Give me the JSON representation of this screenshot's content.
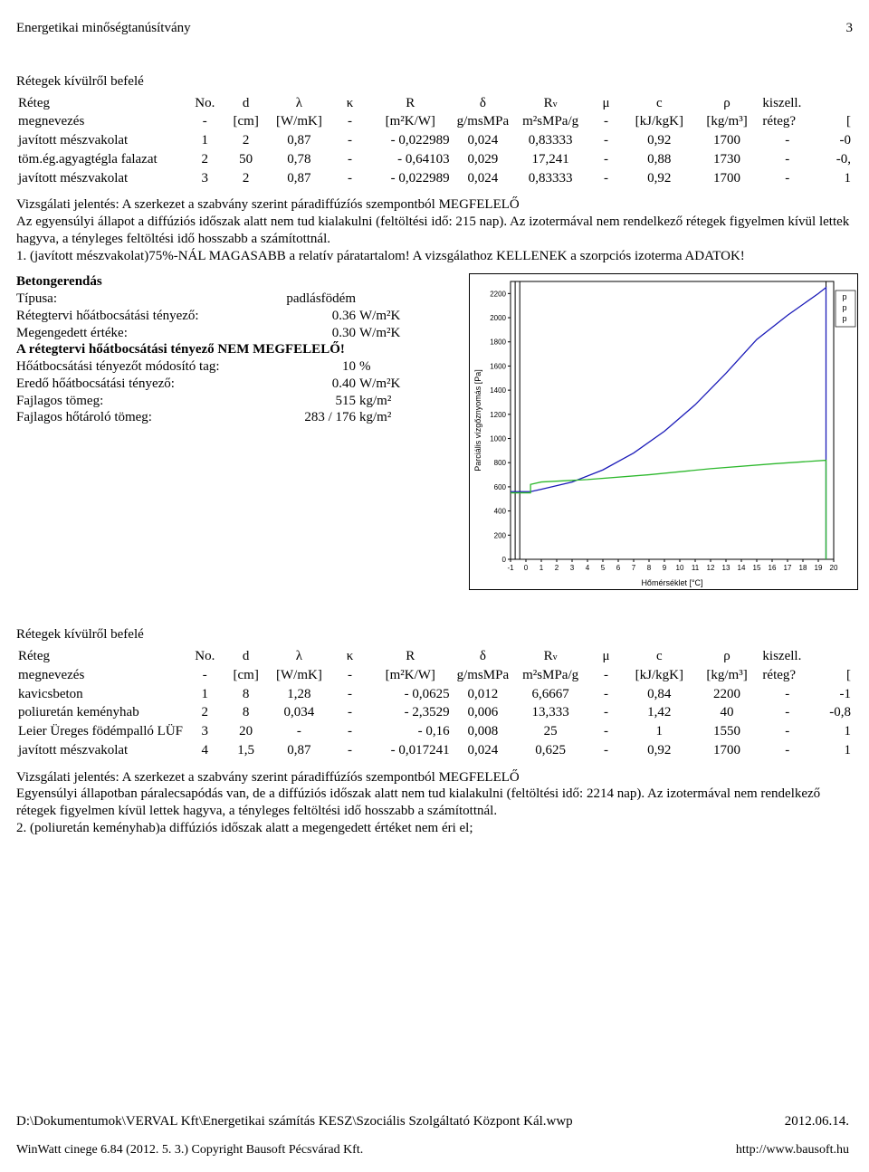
{
  "header": {
    "title": "Energetikai minőségtanúsítvány",
    "page": "3"
  },
  "section1": {
    "caption": "Rétegek kívülről befelé",
    "headers": {
      "l0": "Réteg",
      "no": "No.",
      "d": "d",
      "lambda": "λ",
      "kappa": "κ",
      "R": "R",
      "delta": "δ",
      "Rv": "R",
      "mu": "μ",
      "c": "c",
      "rho": "ρ",
      "kiszell": "kiszell.",
      "l1": "megnevezés",
      "dash": "-",
      "u_d": "[cm]",
      "u_l": "[W/mK]",
      "u_R": "[m²K/W]",
      "u_dl": "g/msMPa",
      "u_Rv": "m²sMPa/g",
      "u_c": "[kJ/kgK]",
      "u_rho": "[kg/m³]",
      "u_k": "réteg?",
      "br": "["
    },
    "rows": [
      {
        "name": "javított mészvakolat",
        "no": "1",
        "d": "2",
        "l": "0,87",
        "k": "-",
        "R": "0,022989",
        "dl": "0,024",
        "Rv": "0,83333",
        "mu": "-",
        "c": "0,92",
        "rho": "1700",
        "ks": "-",
        "end": "-0"
      },
      {
        "name": "töm.ég.agyagtégla falazat",
        "no": "2",
        "d": "50",
        "l": "0,78",
        "k": "-",
        "R": "0,64103",
        "dl": "0,029",
        "Rv": "17,241",
        "mu": "-",
        "c": "0,88",
        "rho": "1730",
        "ks": "-",
        "end": "-0,"
      },
      {
        "name": "javított mészvakolat",
        "no": "3",
        "d": "2",
        "l": "0,87",
        "k": "-",
        "R": "0,022989",
        "dl": "0,024",
        "Rv": "0,83333",
        "mu": "-",
        "c": "0,92",
        "rho": "1700",
        "ks": "-",
        "end": "1"
      }
    ],
    "report1": "Vizsgálati jelentés: A szerkezet a szabvány szerint páradiffúzíós szempontból MEGFELELŐ",
    "report2": "Az egyensúlyi állapot a diffúziós időszak alatt nem tud kialakulni (feltöltési idő: 215 nap). Az izotermával nem rendelkező rétegek figyelmen kívül lettek hagyva, a tényleges feltöltési idő hosszabb a számítottnál.",
    "report3": "1. (javított mészvakolat)75%-NÁL MAGASABB a relatív páratartalom! A vizsgálathoz KELLENEK a szorpciós izoterma ADATOK!"
  },
  "section2": {
    "title": "Betongerendás",
    "kv": [
      {
        "k": "Típusa:",
        "v": "padlásfödém",
        "u": ""
      },
      {
        "k": "Rétegtervi hőátbocsátási tényező:",
        "v": "0.36",
        "u": "W/m²K"
      },
      {
        "k": "Megengedett értéke:",
        "v": "0.30",
        "u": "W/m²K"
      },
      {
        "k": "A rétegtervi hőátbocsátási tényező NEM MEGFELELŐ!",
        "v": "",
        "u": "",
        "bold": true
      },
      {
        "k": "Hőátbocsátási tényezőt módosító tag:",
        "v": "10",
        "u": "%"
      },
      {
        "k": "Eredő hőátbocsátási tényező:",
        "v": "0.40",
        "u": "W/m²K"
      },
      {
        "k": "Fajlagos tömeg:",
        "v": "515",
        "u": "kg/m²"
      },
      {
        "k": "Fajlagos hőtároló tömeg:",
        "v": "283 / 176",
        "u": "kg/m²"
      }
    ],
    "chart": {
      "y_label": "Parciális vízgőznyomás [Pa]",
      "x_label": "Hőmérséklet [°C]",
      "y_ticks": [
        "0",
        "200",
        "400",
        "600",
        "800",
        "1000",
        "1200",
        "1400",
        "1600",
        "1800",
        "2000",
        "2200"
      ],
      "x_ticks": [
        "-1",
        "0",
        "1",
        "2",
        "3",
        "4",
        "5",
        "6",
        "7",
        "8",
        "9",
        "10",
        "11",
        "12",
        "13",
        "14",
        "15",
        "16",
        "17",
        "18",
        "19",
        "20"
      ],
      "ylim": [
        0,
        2300
      ],
      "xlim": [
        -1,
        20
      ],
      "colors": {
        "border": "#000000",
        "curve_blue": "#1a1ab8",
        "curve_green": "#2db82d",
        "grid": "#000000",
        "bg": "#ffffff"
      },
      "curve_blue_points": [
        {
          "x": -1,
          "y": 560
        },
        {
          "x": 0.3,
          "y": 560
        },
        {
          "x": 1,
          "y": 580
        },
        {
          "x": 3,
          "y": 640
        },
        {
          "x": 5,
          "y": 740
        },
        {
          "x": 7,
          "y": 880
        },
        {
          "x": 9,
          "y": 1060
        },
        {
          "x": 11,
          "y": 1280
        },
        {
          "x": 13,
          "y": 1540
        },
        {
          "x": 15,
          "y": 1820
        },
        {
          "x": 17,
          "y": 2020
        },
        {
          "x": 19,
          "y": 2200
        },
        {
          "x": 19.5,
          "y": 2250
        },
        {
          "x": 19.5,
          "y": 0
        }
      ],
      "curve_green_points": [
        {
          "x": -1,
          "y": 550
        },
        {
          "x": 0.3,
          "y": 550
        },
        {
          "x": 0.3,
          "y": 620
        },
        {
          "x": 1,
          "y": 640
        },
        {
          "x": 4,
          "y": 660
        },
        {
          "x": 8,
          "y": 700
        },
        {
          "x": 12,
          "y": 750
        },
        {
          "x": 16,
          "y": 790
        },
        {
          "x": 19.5,
          "y": 820
        },
        {
          "x": 19.5,
          "y": 0
        }
      ],
      "legend_items": [
        "p",
        "p",
        "p"
      ]
    }
  },
  "section3": {
    "caption": "Rétegek kívülről befelé",
    "rows": [
      {
        "name": "kavicsbeton",
        "no": "1",
        "d": "8",
        "l": "1,28",
        "k": "-",
        "R": "0,0625",
        "dl": "0,012",
        "Rv": "6,6667",
        "mu": "-",
        "c": "0,84",
        "rho": "2200",
        "ks": "-",
        "end": "-1"
      },
      {
        "name": "poliuretán keményhab",
        "no": "2",
        "d": "8",
        "l": "0,034",
        "k": "-",
        "R": "2,3529",
        "dl": "0,006",
        "Rv": "13,333",
        "mu": "-",
        "c": "1,42",
        "rho": "40",
        "ks": "-",
        "end": "-0,8"
      },
      {
        "name": "Leier Üreges födémpalló LÜF",
        "no": "3",
        "d": "20",
        "l": "-",
        "k": "-",
        "R": "0,16",
        "dl": "0,008",
        "Rv": "25",
        "mu": "-",
        "c": "1",
        "rho": "1550",
        "ks": "-",
        "end": "1"
      },
      {
        "name": "javított mészvakolat",
        "no": "4",
        "d": "1,5",
        "l": "0,87",
        "k": "-",
        "R": "0,017241",
        "dl": "0,024",
        "Rv": "0,625",
        "mu": "-",
        "c": "0,92",
        "rho": "1700",
        "ks": "-",
        "end": "1"
      }
    ],
    "report1": "Vizsgálati jelentés: A szerkezet a szabvány szerint páradiffúzíós szempontból MEGFELELŐ",
    "report2": "Egyensúlyi állapotban páralecsapódás van, de a diffúziós időszak alatt nem tud kialakulni (feltöltési idő: 2214 nap). Az izotermával nem rendelkező rétegek figyelmen kívül lettek hagyva, a tényleges feltöltési idő hosszabb a számítottnál.",
    "report3": "2. (poliuretán keményhab)a diffúziós időszak alatt a megengedett értéket nem éri el;"
  },
  "footer": {
    "path": "D:\\Dokumentumok\\VERVAL Kft\\Energetikai számítás KESZ\\Szociális Szolgáltató Központ Kál.wwp",
    "date": "2012.06.14.",
    "app": "WinWatt cinege 6.84 (2012. 5. 3.) Copyright Bausoft Pécsvárad Kft.",
    "url": "http://www.bausoft.hu"
  },
  "v_sub": "v"
}
